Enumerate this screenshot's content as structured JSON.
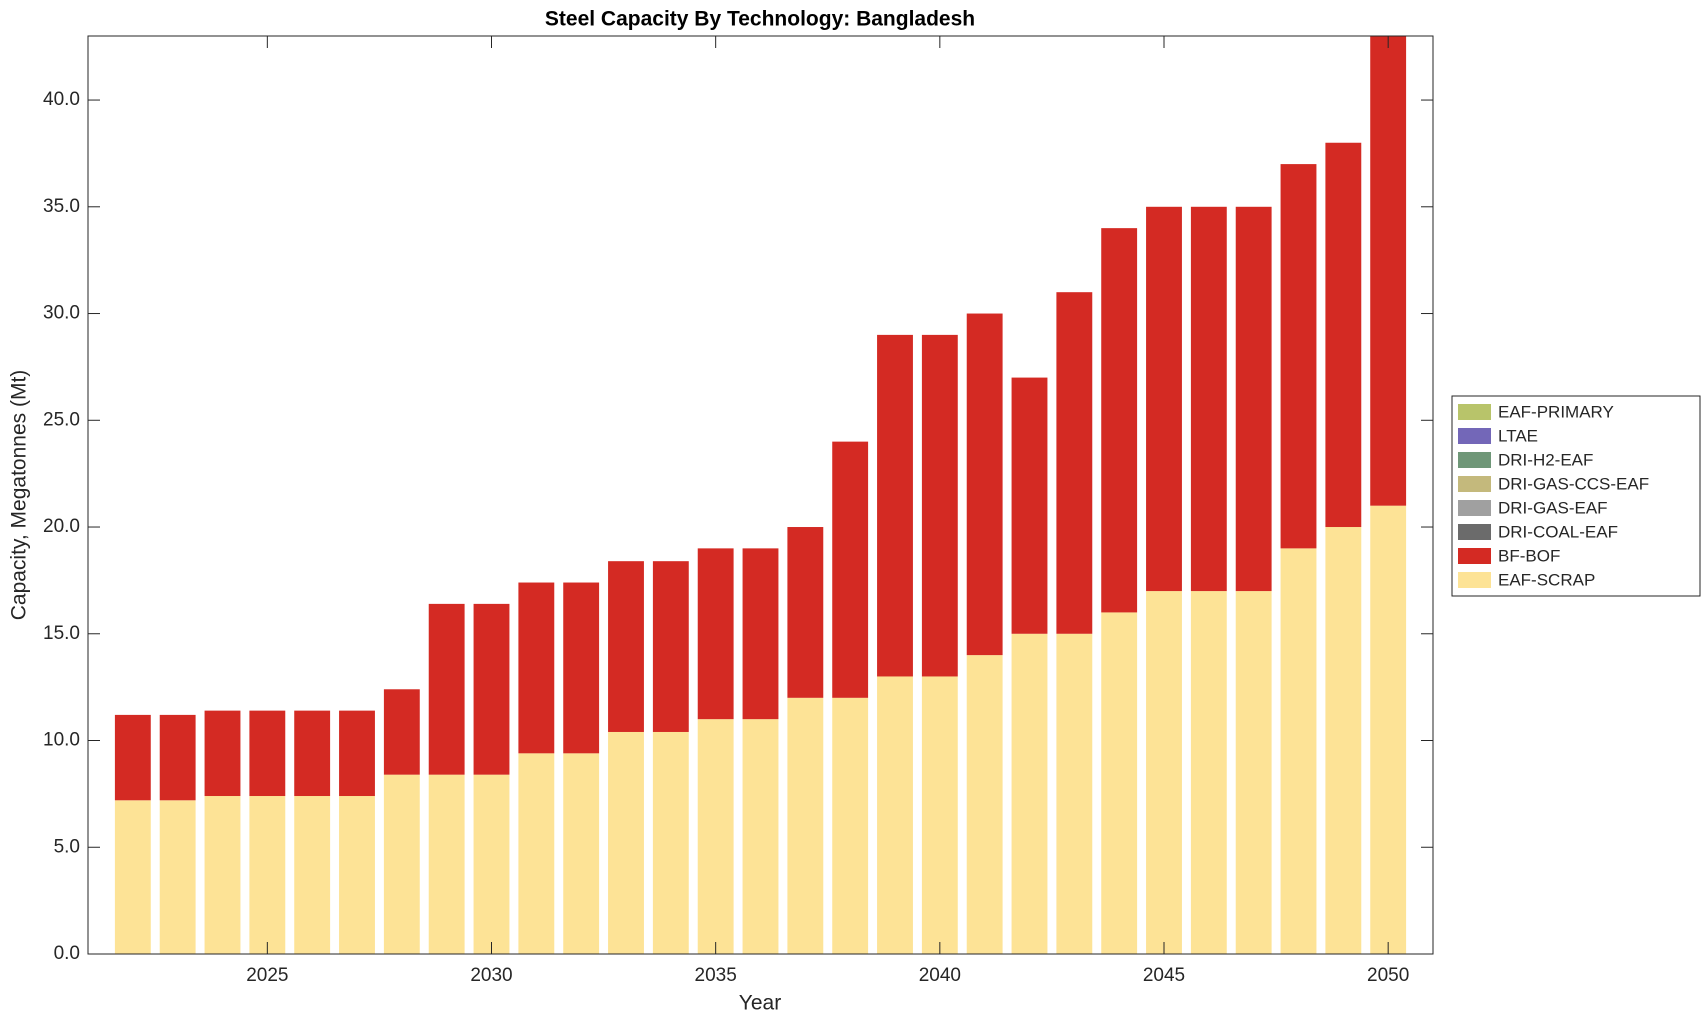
{
  "chart_data": {
    "type": "bar",
    "stacked": true,
    "title": "Steel Capacity By Technology: Bangladesh",
    "xlabel": "Year",
    "ylabel": "Capacity, Megatonnes (Mt)",
    "x": [
      2022,
      2023,
      2024,
      2025,
      2026,
      2027,
      2028,
      2029,
      2030,
      2031,
      2032,
      2033,
      2034,
      2035,
      2036,
      2037,
      2038,
      2039,
      2040,
      2041,
      2042,
      2043,
      2044,
      2045,
      2046,
      2047,
      2048,
      2049,
      2050
    ],
    "series": [
      {
        "name": "EAF-SCRAP",
        "color": "#fde396",
        "values": [
          7.2,
          7.2,
          7.4,
          7.4,
          7.4,
          7.4,
          8.4,
          8.4,
          8.4,
          9.4,
          9.4,
          10.4,
          10.4,
          11,
          11,
          12,
          12,
          13,
          13,
          14,
          15,
          15,
          16,
          17,
          17,
          17,
          19,
          20,
          21
        ]
      },
      {
        "name": "BF-BOF",
        "color": "#d42a23",
        "values": [
          4,
          4,
          4,
          4,
          4,
          4,
          4,
          8,
          8,
          8,
          8,
          8,
          8,
          8,
          8,
          8,
          12,
          16,
          16,
          16,
          12,
          16,
          18,
          18,
          18,
          18,
          18,
          18,
          22
        ]
      },
      {
        "name": "DRI-COAL-EAF",
        "color": "#6b6b6b",
        "values": [
          0,
          0,
          0,
          0,
          0,
          0,
          0,
          0,
          0,
          0,
          0,
          0,
          0,
          0,
          0,
          0,
          0,
          0,
          0,
          0,
          0,
          0,
          0,
          0,
          0,
          0,
          0,
          0,
          0
        ]
      },
      {
        "name": "DRI-GAS-EAF",
        "color": "#a0a0a0",
        "values": [
          0,
          0,
          0,
          0,
          0,
          0,
          0,
          0,
          0,
          0,
          0,
          0,
          0,
          0,
          0,
          0,
          0,
          0,
          0,
          0,
          0,
          0,
          0,
          0,
          0,
          0,
          0,
          0,
          0
        ]
      },
      {
        "name": "DRI-GAS-CCS-EAF",
        "color": "#c4b97c",
        "values": [
          0,
          0,
          0,
          0,
          0,
          0,
          0,
          0,
          0,
          0,
          0,
          0,
          0,
          0,
          0,
          0,
          0,
          0,
          0,
          0,
          0,
          0,
          0,
          0,
          0,
          0,
          0,
          0,
          0
        ]
      },
      {
        "name": "DRI-H2-EAF",
        "color": "#6f9778",
        "values": [
          0,
          0,
          0,
          0,
          0,
          0,
          0,
          0,
          0,
          0,
          0,
          0,
          0,
          0,
          0,
          0,
          0,
          0,
          0,
          0,
          0,
          0,
          0,
          0,
          0,
          0,
          0,
          0,
          0
        ]
      },
      {
        "name": "LTAE",
        "color": "#7367b8",
        "values": [
          0,
          0,
          0,
          0,
          0,
          0,
          0,
          0,
          0,
          0,
          0,
          0,
          0,
          0,
          0,
          0,
          0,
          0,
          0,
          0,
          0,
          0,
          0,
          0,
          0,
          0,
          0,
          0,
          0
        ]
      },
      {
        "name": "EAF-PRIMARY",
        "color": "#b8c46a",
        "values": [
          0,
          0,
          0,
          0,
          0,
          0,
          0,
          0,
          0,
          0,
          0,
          0,
          0,
          0,
          0,
          0,
          0,
          0,
          0,
          0,
          0,
          0,
          0,
          0,
          0,
          0,
          0,
          0,
          0
        ]
      }
    ],
    "xlim": [
      2021,
      2051
    ],
    "xticks": [
      2025,
      2030,
      2035,
      2040,
      2045,
      2050
    ],
    "ylim": [
      0,
      43
    ],
    "yticks": [
      {
        "value": 0,
        "label": "0.0"
      },
      {
        "value": 5,
        "label": "5.0"
      },
      {
        "value": 10,
        "label": "10.0"
      },
      {
        "value": 15,
        "label": "15.0"
      },
      {
        "value": 20,
        "label": "20.0"
      },
      {
        "value": 25,
        "label": "25.0"
      },
      {
        "value": 30,
        "label": "30.0"
      },
      {
        "value": 35,
        "label": "35.0"
      },
      {
        "value": 40,
        "label": "40.0"
      }
    ],
    "legend": "outside-right"
  }
}
